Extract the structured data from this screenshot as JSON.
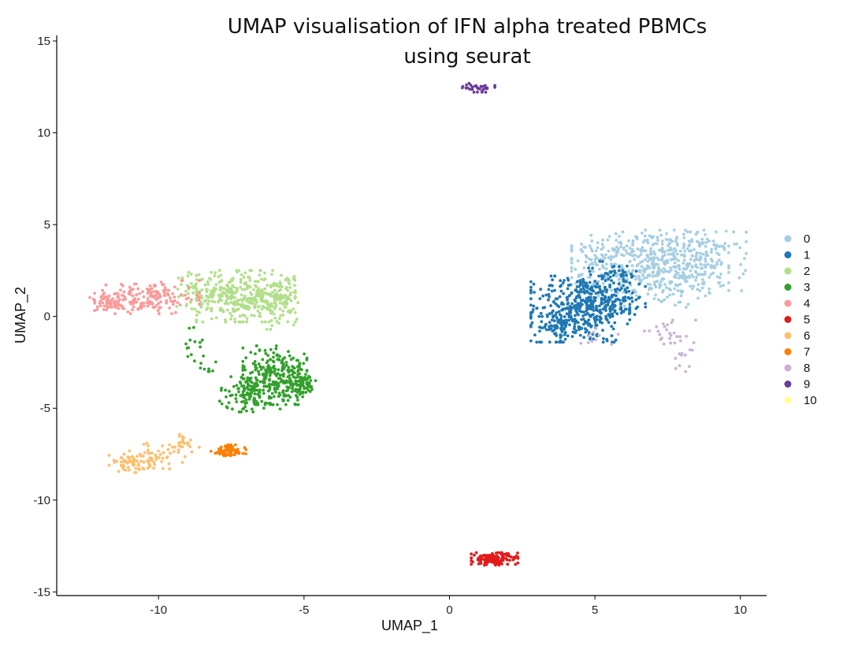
{
  "chart_data": {
    "type": "scatter",
    "title_line1": "UMAP visualisation of IFN alpha treated PBMCs",
    "title_line2": "using seurat",
    "xlabel": "UMAP_1",
    "ylabel": "UMAP_2",
    "xlim": [
      -13.5,
      10.9
    ],
    "ylim": [
      -15.2,
      15.3
    ],
    "x_ticks": [
      -10,
      -5,
      0,
      5,
      10
    ],
    "x_tick_labels": [
      "-10",
      "-5",
      "0",
      "5",
      "10"
    ],
    "y_ticks": [
      -15,
      -10,
      -5,
      0,
      5,
      10,
      15
    ],
    "y_tick_labels": [
      "-15",
      "-10",
      "-5",
      "0",
      "5",
      "10",
      "15"
    ],
    "grid": false,
    "legend_position": "right",
    "series": [
      {
        "name": "0",
        "color": "#a6cee3",
        "regions": [
          {
            "cx": 6.9,
            "cy": 2.6,
            "sx": 1.35,
            "sy": 1.05,
            "n": 420
          },
          {
            "cx": 8.6,
            "cy": 3.0,
            "sx": 0.8,
            "sy": 0.8,
            "n": 140
          },
          {
            "cx": 5.8,
            "cy": 3.6,
            "sx": 0.8,
            "sy": 0.5,
            "n": 80
          }
        ]
      },
      {
        "name": "1",
        "color": "#1f78b4",
        "regions": [
          {
            "cx": 4.5,
            "cy": 0.4,
            "sx": 0.85,
            "sy": 0.9,
            "n": 380
          },
          {
            "cx": 5.6,
            "cy": 1.4,
            "sx": 0.7,
            "sy": 0.8,
            "n": 140
          },
          {
            "cx": 3.7,
            "cy": -0.6,
            "sx": 0.3,
            "sy": 0.4,
            "n": 60
          }
        ]
      },
      {
        "name": "2",
        "color": "#b2df8a",
        "regions": [
          {
            "cx": -7.0,
            "cy": 1.1,
            "sx": 0.85,
            "sy": 0.7,
            "n": 330
          },
          {
            "cx": -5.8,
            "cy": 0.7,
            "sx": 0.3,
            "sy": 0.7,
            "n": 80
          },
          {
            "cx": -8.5,
            "cy": 1.4,
            "sx": 0.5,
            "sy": 0.5,
            "n": 80
          }
        ]
      },
      {
        "name": "3",
        "color": "#33a02c",
        "regions": [
          {
            "cx": -6.0,
            "cy": -3.2,
            "sx": 0.55,
            "sy": 0.8,
            "n": 250
          },
          {
            "cx": -6.8,
            "cy": -4.2,
            "sx": 0.55,
            "sy": 0.5,
            "n": 120
          },
          {
            "cx": -5.1,
            "cy": -3.7,
            "sx": 0.25,
            "sy": 0.35,
            "n": 70
          },
          {
            "cx": -8.6,
            "cy": -1.8,
            "sx": 0.3,
            "sy": 0.6,
            "n": 22
          }
        ]
      },
      {
        "name": "4",
        "color": "#fb9a99",
        "regions": [
          {
            "cx": -10.4,
            "cy": 1.05,
            "sx": 0.9,
            "sy": 0.45,
            "n": 160
          },
          {
            "cx": -11.6,
            "cy": 0.65,
            "sx": 0.5,
            "sy": 0.25,
            "n": 50
          }
        ]
      },
      {
        "name": "5",
        "color": "#e31a1c",
        "regions": [
          {
            "cx": 1.55,
            "cy": -13.2,
            "sx": 0.4,
            "sy": 0.17,
            "n": 150
          }
        ]
      },
      {
        "name": "6",
        "color": "#fdbf6f",
        "regions": [
          {
            "cx": -11.0,
            "cy": -8.0,
            "sx": 0.35,
            "sy": 0.25,
            "n": 60
          },
          {
            "cx": -10.0,
            "cy": -7.6,
            "sx": 0.5,
            "sy": 0.35,
            "n": 45
          },
          {
            "cx": -9.2,
            "cy": -6.9,
            "sx": 0.3,
            "sy": 0.4,
            "n": 25
          }
        ]
      },
      {
        "name": "7",
        "color": "#ff7f00",
        "regions": [
          {
            "cx": -7.6,
            "cy": -7.35,
            "sx": 0.3,
            "sy": 0.18,
            "n": 75
          }
        ]
      },
      {
        "name": "8",
        "color": "#cab2d6",
        "regions": [
          {
            "cx": 7.6,
            "cy": -0.9,
            "sx": 0.45,
            "sy": 0.35,
            "n": 25
          },
          {
            "cx": 8.0,
            "cy": -2.2,
            "sx": 0.2,
            "sy": 0.4,
            "n": 12
          },
          {
            "cx": 5.0,
            "cy": -1.3,
            "sx": 0.5,
            "sy": 0.35,
            "n": 10
          }
        ]
      },
      {
        "name": "9",
        "color": "#6a3d9a",
        "regions": [
          {
            "cx": 1.0,
            "cy": 12.45,
            "sx": 0.28,
            "sy": 0.12,
            "n": 35
          }
        ]
      },
      {
        "name": "10",
        "color": "#ffff99",
        "regions": []
      }
    ]
  }
}
